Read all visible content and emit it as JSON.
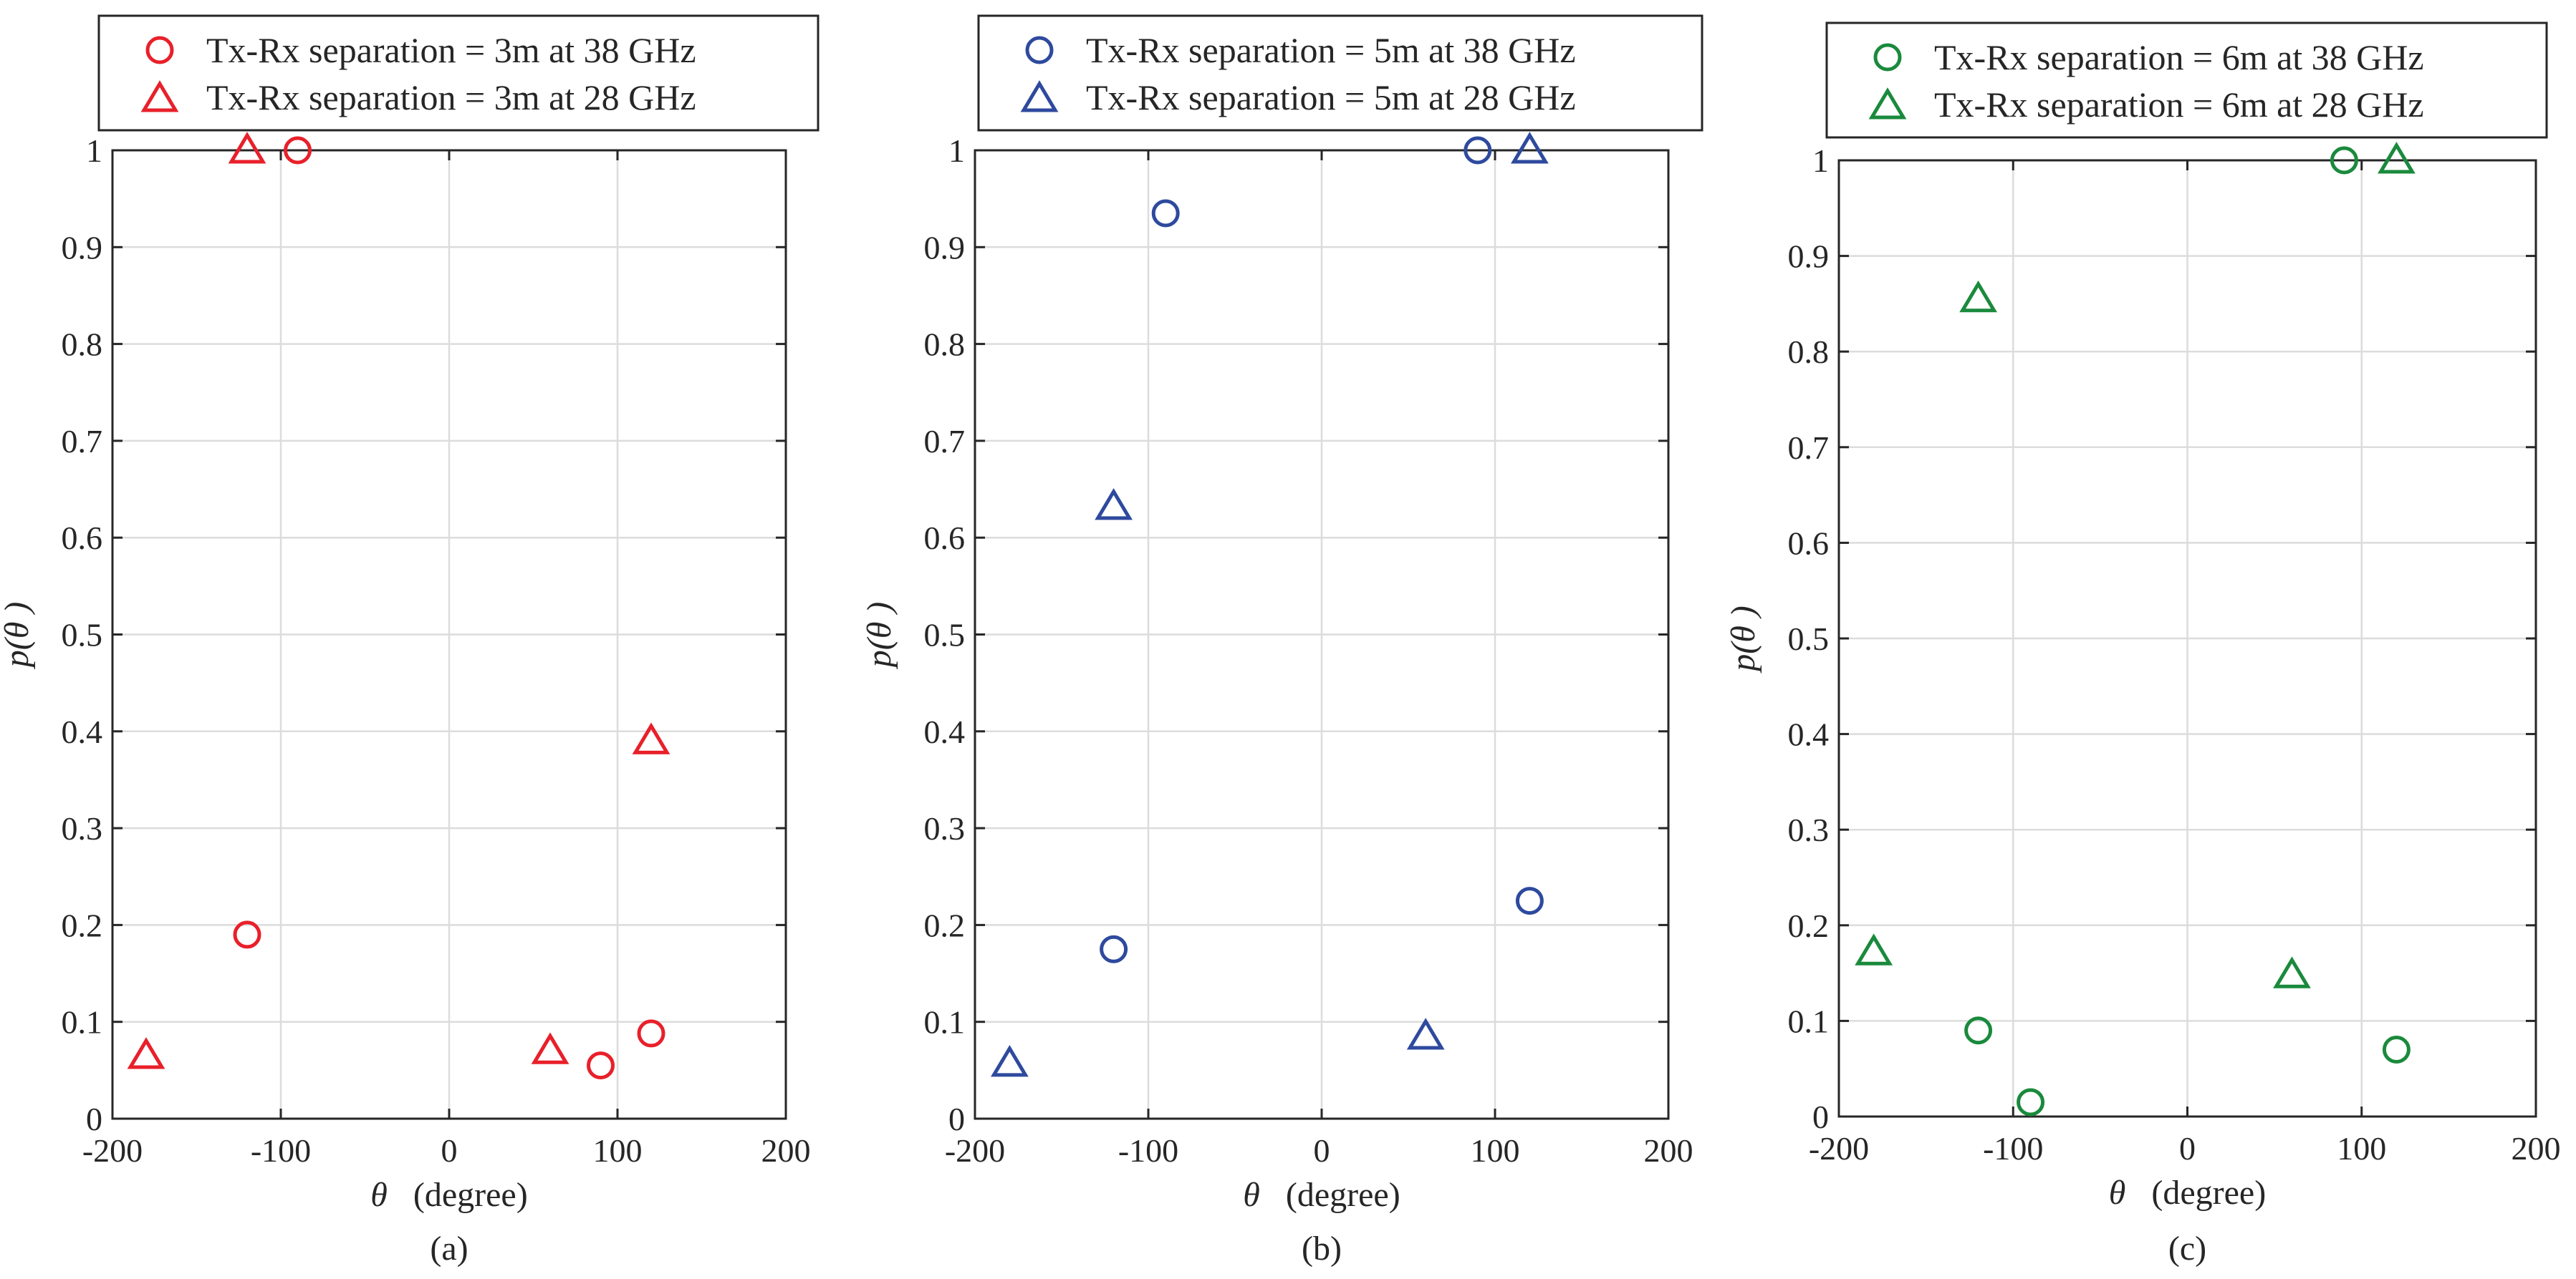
{
  "chart_data": [
    {
      "type": "scatter",
      "caption": "(a)",
      "xlabel_symbol": "θ",
      "xlabel_unit": "(degree)",
      "ylabel": "p(θ )",
      "xlim": [
        -200,
        200
      ],
      "ylim": [
        0,
        1
      ],
      "xticks": [
        -200,
        -100,
        0,
        100,
        200
      ],
      "yticks": [
        0,
        0.1,
        0.2,
        0.3,
        0.4,
        0.5,
        0.6,
        0.7,
        0.8,
        0.9,
        1
      ],
      "xtick_labels": [
        "-200",
        "-100",
        "0",
        "100",
        "200"
      ],
      "ytick_labels": [
        "0",
        "0.1",
        "0.2",
        "0.3",
        "0.4",
        "0.5",
        "0.6",
        "0.7",
        "0.8",
        "0.9",
        "1"
      ],
      "grid": true,
      "legend_position": "above-plot",
      "series": [
        {
          "name": "Tx-Rx separation = 3m at 38 GHz",
          "marker": "circle",
          "color": "#e8202a",
          "x": [
            -120,
            -90,
            90,
            120
          ],
          "y": [
            0.19,
            1.0,
            0.055,
            0.088
          ]
        },
        {
          "name": "Tx-Rx separation = 3m at 28 GHz",
          "marker": "triangle",
          "color": "#e8202a",
          "x": [
            -180,
            -120,
            60,
            120
          ],
          "y": [
            0.065,
            1.0,
            0.07,
            0.39
          ]
        }
      ]
    },
    {
      "type": "scatter",
      "caption": "(b)",
      "xlabel_symbol": "θ",
      "xlabel_unit": "(degree)",
      "ylabel": "p(θ )",
      "xlim": [
        -200,
        200
      ],
      "ylim": [
        0,
        1
      ],
      "xticks": [
        -200,
        -100,
        0,
        100,
        200
      ],
      "yticks": [
        0,
        0.1,
        0.2,
        0.3,
        0.4,
        0.5,
        0.6,
        0.7,
        0.8,
        0.9,
        1
      ],
      "xtick_labels": [
        "-200",
        "-100",
        "0",
        "100",
        "200"
      ],
      "ytick_labels": [
        "0",
        "0.1",
        "0.2",
        "0.3",
        "0.4",
        "0.5",
        "0.6",
        "0.7",
        "0.8",
        "0.9",
        "1"
      ],
      "grid": true,
      "legend_position": "above-plot",
      "series": [
        {
          "name": "Tx-Rx separation = 5m at 38 GHz",
          "marker": "circle",
          "color": "#2e4a9e",
          "x": [
            -120,
            -90,
            90,
            120
          ],
          "y": [
            0.175,
            0.935,
            1.0,
            0.225
          ]
        },
        {
          "name": "Tx-Rx separation = 5m at 28 GHz",
          "marker": "triangle",
          "color": "#2e4a9e",
          "x": [
            -180,
            -120,
            60,
            120
          ],
          "y": [
            0.057,
            0.632,
            0.085,
            1.0
          ]
        }
      ]
    },
    {
      "type": "scatter",
      "caption": "(c)",
      "xlabel_symbol": "θ",
      "xlabel_unit": "(degree)",
      "ylabel": "p(θ )",
      "xlim": [
        -200,
        200
      ],
      "ylim": [
        0,
        1
      ],
      "xticks": [
        -200,
        -100,
        0,
        100,
        200
      ],
      "yticks": [
        0,
        0.1,
        0.2,
        0.3,
        0.4,
        0.5,
        0.6,
        0.7,
        0.8,
        0.9,
        1
      ],
      "xtick_labels": [
        "-200",
        "-100",
        "0",
        "100",
        "200"
      ],
      "ytick_labels": [
        "0",
        "0.1",
        "0.2",
        "0.3",
        "0.4",
        "0.5",
        "0.6",
        "0.7",
        "0.8",
        "0.9",
        "1"
      ],
      "grid": true,
      "legend_position": "above-plot",
      "series": [
        {
          "name": "Tx-Rx separation = 6m at 38 GHz",
          "marker": "circle",
          "color": "#1a8a3c",
          "x": [
            -120,
            -90,
            90,
            120
          ],
          "y": [
            0.09,
            0.015,
            1.0,
            0.07
          ]
        },
        {
          "name": "Tx-Rx separation = 6m at 28 GHz",
          "marker": "triangle",
          "color": "#1a8a3c",
          "x": [
            -180,
            -120,
            60,
            120
          ],
          "y": [
            0.172,
            0.855,
            0.148,
            1.0
          ]
        }
      ]
    }
  ]
}
